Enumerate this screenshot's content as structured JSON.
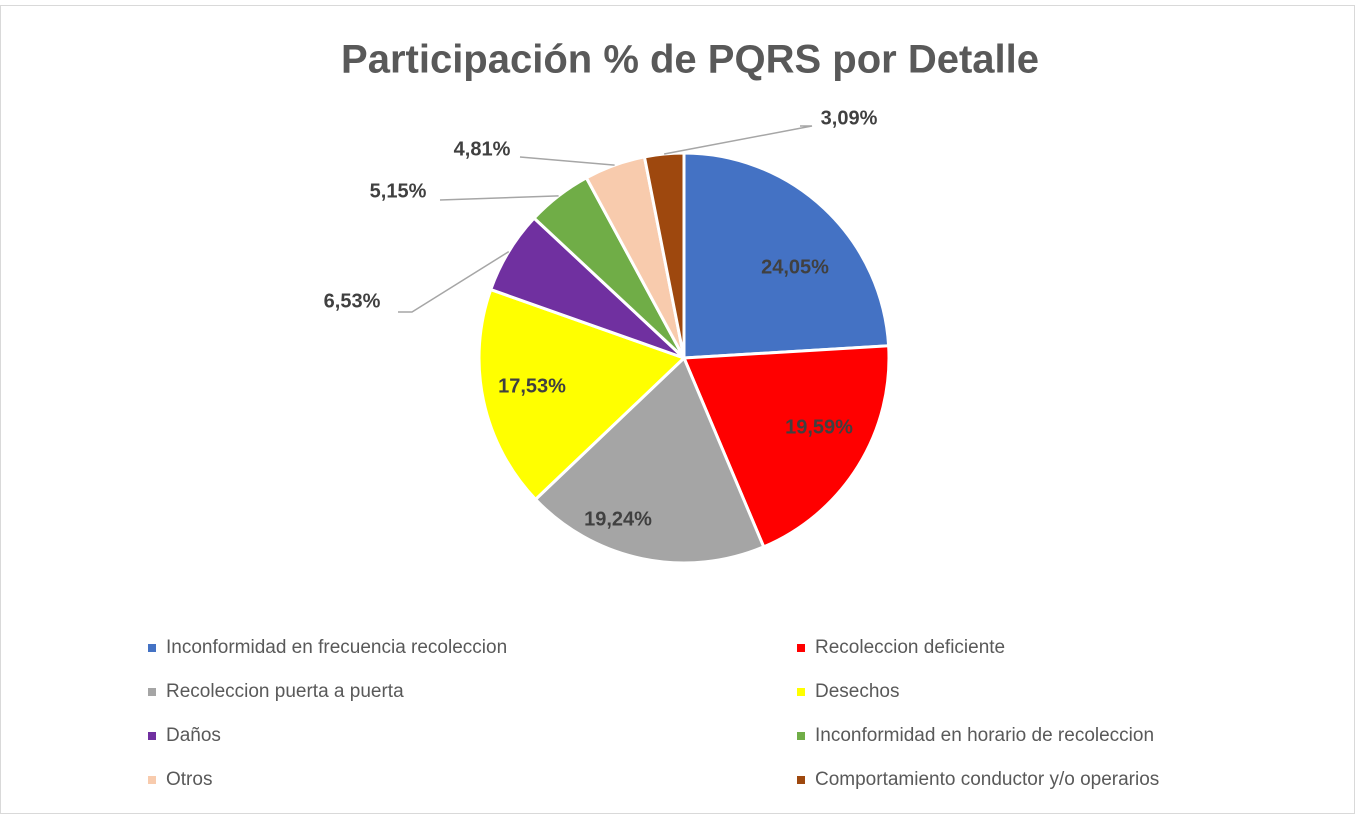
{
  "chart_data": {
    "type": "pie",
    "title": "Participación % de PQRS por Detalle",
    "categories": [
      "Inconformidad en frecuencia recoleccion",
      "Recoleccion deficiente",
      "Recoleccion puerta a puerta",
      "Desechos",
      "Daños",
      "Inconformidad en horario de recoleccion",
      "Otros",
      "Comportamiento conductor y/o operarios"
    ],
    "values": [
      24.05,
      19.59,
      19.24,
      17.53,
      6.53,
      5.15,
      4.81,
      3.09
    ],
    "value_labels": [
      "24,05%",
      "19,59%",
      "19,24%",
      "17,53%",
      "6,53%",
      "5,15%",
      "4,81%",
      "3,09%"
    ],
    "colors": [
      "#4472c4",
      "#ff0000",
      "#a5a5a5",
      "#ffff00",
      "#7030a0",
      "#70ad47",
      "#f8cbad",
      "#9e480e"
    ],
    "legend": "bottom"
  }
}
